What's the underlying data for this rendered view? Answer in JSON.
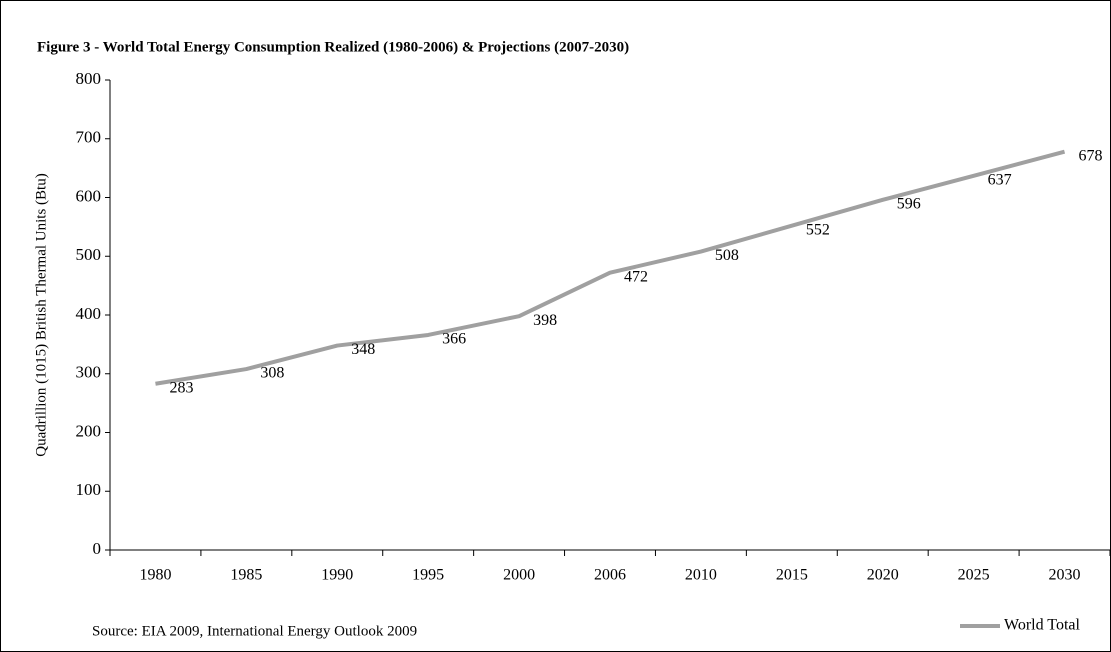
{
  "chart_data": {
    "type": "line",
    "title": "Figure 3 - World Total Energy Consumption Realized (1980-2006) & Projections (2007-2030)",
    "y_label": "Quadrillion (1015) British Thermal Units (Btu)",
    "source": "Source: EIA 2009, International Energy Outlook 2009",
    "categories": [
      "1980",
      "1985",
      "1990",
      "1995",
      "2000",
      "2006",
      "2010",
      "2015",
      "2020",
      "2025",
      "2030"
    ],
    "series": [
      {
        "name": "World Total",
        "color": "#a0a0a0",
        "values": [
          283,
          308,
          348,
          366,
          398,
          472,
          508,
          552,
          596,
          637,
          678
        ]
      }
    ],
    "ylim": [
      0,
      800
    ],
    "yticks": [
      0,
      100,
      200,
      300,
      400,
      500,
      600,
      700,
      800
    ],
    "grid": false,
    "legend": "bottom-right"
  }
}
